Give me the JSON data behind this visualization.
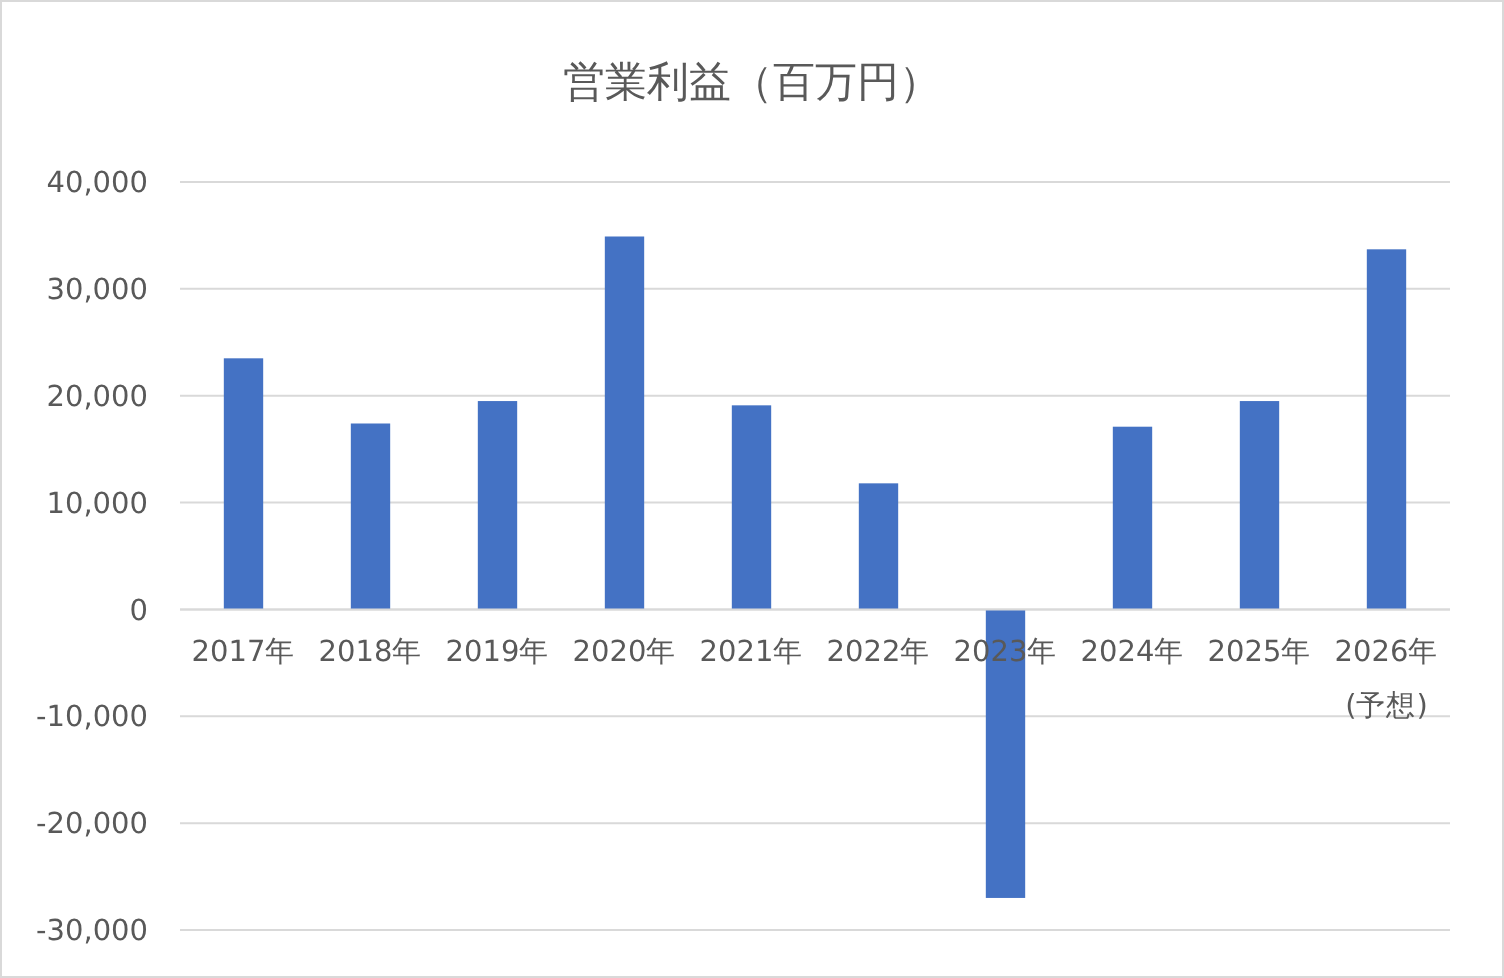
{
  "chart_data": {
    "type": "bar",
    "title": "営業利益（百万円）",
    "categories": [
      "2017年",
      "2018年",
      "2019年",
      "2020年",
      "2021年",
      "2022年",
      "2023年",
      "2024年",
      "2025年",
      "2026年(予想)"
    ],
    "values": [
      23500,
      17400,
      19500,
      34900,
      19100,
      11800,
      -27000,
      17100,
      19500,
      33700
    ],
    "color": "#4472c4",
    "ylim": [
      -30000,
      40000
    ],
    "yticks": [
      {
        "value": -30000,
        "label": "-30,000"
      },
      {
        "value": -20000,
        "label": "-20,000"
      },
      {
        "value": -10000,
        "label": "-10,000"
      },
      0,
      {
        "value": 10000,
        "label": "10,000"
      },
      {
        "value": 20000,
        "label": "20,000"
      },
      {
        "value": 30000,
        "label": "30,000"
      },
      {
        "value": 40000,
        "label": "40,000"
      }
    ],
    "grid": "y"
  }
}
